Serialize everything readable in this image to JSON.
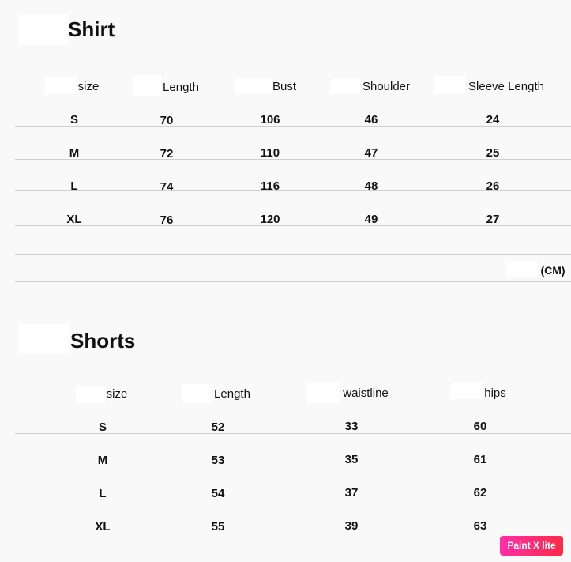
{
  "shirt": {
    "title": "Shirt",
    "headers": [
      "size",
      "Length",
      "Bust",
      "Shoulder",
      "Sleeve Length"
    ],
    "rows": [
      [
        "S",
        "70",
        "106",
        "46",
        "24"
      ],
      [
        "M",
        "72",
        "110",
        "47",
        "25"
      ],
      [
        "L",
        "74",
        "116",
        "48",
        "26"
      ],
      [
        "XL",
        "76",
        "120",
        "49",
        "27"
      ]
    ],
    "unit": "(CM)"
  },
  "shorts": {
    "title": "Shorts",
    "headers": [
      "size",
      "Length",
      "waistline",
      "hips"
    ],
    "rows": [
      [
        "S",
        "52",
        "33",
        "60"
      ],
      [
        "M",
        "53",
        "35",
        "61"
      ],
      [
        "L",
        "54",
        "37",
        "62"
      ],
      [
        "XL",
        "55",
        "39",
        "63"
      ]
    ]
  },
  "watermark": "Paint X lite"
}
